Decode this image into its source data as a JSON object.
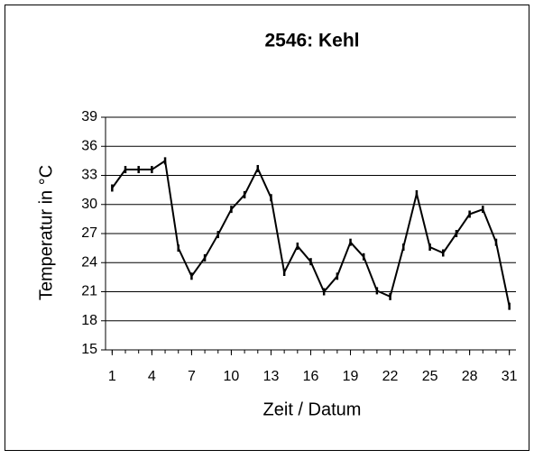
{
  "chart_data": {
    "type": "line",
    "title": "2546: Kehl",
    "xlabel": "Zeit / Datum",
    "ylabel": "Temperatur in °C",
    "x": [
      1,
      2,
      3,
      4,
      5,
      6,
      7,
      8,
      9,
      10,
      11,
      12,
      13,
      14,
      15,
      16,
      17,
      18,
      19,
      20,
      21,
      22,
      23,
      24,
      25,
      26,
      27,
      28,
      29,
      30,
      31
    ],
    "series": [
      {
        "name": "Kehl",
        "color": "#000000",
        "values": [
          31.7,
          33.6,
          33.6,
          33.6,
          34.5,
          25.5,
          22.6,
          24.5,
          26.9,
          29.5,
          31,
          33.7,
          30.7,
          23,
          25.7,
          24.1,
          21,
          22.6,
          26.1,
          24.6,
          21.1,
          20.5,
          25.6,
          31.1,
          25.6,
          25,
          27,
          29,
          29.5,
          26.1,
          19.5
        ]
      }
    ],
    "xlim": [
      0.5,
      31.5
    ],
    "xticks": [
      1,
      4,
      7,
      10,
      13,
      16,
      19,
      22,
      25,
      28,
      31
    ],
    "ylim": [
      15,
      39
    ],
    "yticks": [
      15,
      18,
      21,
      24,
      27,
      30,
      33,
      36,
      39
    ],
    "grid": true
  }
}
